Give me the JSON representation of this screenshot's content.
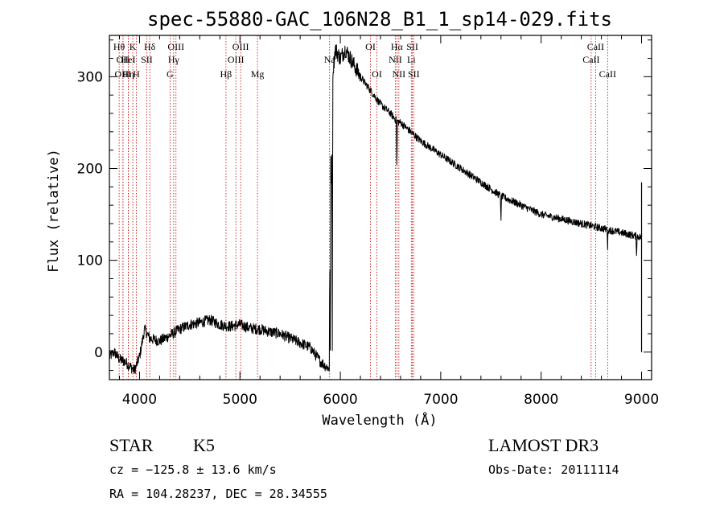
{
  "chart_data": {
    "type": "line",
    "title": "spec-55880-GAC_106N28_B1_1_sp14-029.fits",
    "xlabel": "Wavelength (Å)",
    "ylabel": "Flux (relative)",
    "xlim": [
      3700,
      9100
    ],
    "ylim": [
      -30,
      345
    ],
    "xticks": [
      4000,
      5000,
      6000,
      7000,
      8000,
      9000
    ],
    "yticks": [
      0,
      100,
      200,
      300
    ],
    "spectrum_anchors": {
      "name": "flux",
      "x": [
        3700,
        3750,
        3800,
        3850,
        3900,
        3950,
        4000,
        4050,
        4100,
        4200,
        4300,
        4400,
        4500,
        4600,
        4700,
        4800,
        4900,
        5000,
        5100,
        5200,
        5300,
        5400,
        5500,
        5600,
        5700,
        5800,
        5850,
        5890,
        5900,
        5910,
        5920,
        5950,
        6000,
        6050,
        6100,
        6200,
        6300,
        6400,
        6500,
        6560,
        6600,
        6700,
        6800,
        7000,
        7200,
        7400,
        7600,
        7800,
        8000,
        8200,
        8400,
        8600,
        8800,
        9000
      ],
      "y": [
        -5,
        0,
        -8,
        -10,
        -15,
        -20,
        -5,
        25,
        15,
        12,
        18,
        25,
        30,
        32,
        35,
        30,
        28,
        30,
        26,
        25,
        22,
        20,
        15,
        10,
        5,
        -10,
        -15,
        -18,
        240,
        170,
        300,
        330,
        320,
        330,
        320,
        300,
        285,
        270,
        260,
        252,
        250,
        240,
        230,
        215,
        200,
        185,
        170,
        160,
        150,
        145,
        140,
        135,
        130,
        125
      ]
    },
    "absorption_features": [
      {
        "x": 5900,
        "depth": 260
      },
      {
        "x": 5920,
        "depth": 290
      },
      {
        "x": 6563,
        "depth": 60
      },
      {
        "x": 7600,
        "depth": 30
      },
      {
        "x": 8662,
        "depth": 20
      },
      {
        "x": 8950,
        "depth": 20
      }
    ],
    "line_markers": [
      {
        "wavelength": 3797,
        "label": "Hθ",
        "row": 1
      },
      {
        "wavelength": 3835,
        "label": "OII",
        "row": 2
      },
      {
        "wavelength": 3835,
        "label": "OIII",
        "row": 3
      },
      {
        "wavelength": 3889,
        "label": "Hη",
        "row": 3
      },
      {
        "wavelength": 3933,
        "label": "K",
        "row": 1
      },
      {
        "wavelength": 3888,
        "label": "HeI",
        "row": 2
      },
      {
        "wavelength": 3968,
        "label": "H",
        "row": 3
      },
      {
        "wavelength": 4072,
        "label": "SII",
        "row": 2
      },
      {
        "wavelength": 4102,
        "label": "Hδ",
        "row": 1
      },
      {
        "wavelength": 4340,
        "label": "Hγ",
        "row": 2
      },
      {
        "wavelength": 4363,
        "label": "OIII",
        "row": 1
      },
      {
        "wavelength": 4304,
        "label": "G",
        "row": 3
      },
      {
        "wavelength": 4861,
        "label": "Hβ",
        "row": 3
      },
      {
        "wavelength": 4959,
        "label": "OIII",
        "row": 2
      },
      {
        "wavelength": 5007,
        "label": "OIII",
        "row": 1
      },
      {
        "wavelength": 5175,
        "label": "Mg",
        "row": 3
      },
      {
        "wavelength": 5893,
        "label": "Na",
        "row": 2
      },
      {
        "wavelength": 6300,
        "label": "OI",
        "row": 1
      },
      {
        "wavelength": 6364,
        "label": "OI",
        "row": 3
      },
      {
        "wavelength": 6548,
        "label": "NII",
        "row": 2
      },
      {
        "wavelength": 6563,
        "label": "Hα",
        "row": 1
      },
      {
        "wavelength": 6583,
        "label": "NII",
        "row": 3
      },
      {
        "wavelength": 6707,
        "label": "Li",
        "row": 2
      },
      {
        "wavelength": 6717,
        "label": "SII",
        "row": 1
      },
      {
        "wavelength": 6731,
        "label": "SII",
        "row": 3
      },
      {
        "wavelength": 8498,
        "label": "CaII",
        "row": 2
      },
      {
        "wavelength": 8542,
        "label": "CaII",
        "row": 1
      },
      {
        "wavelength": 8662,
        "label": "CaII",
        "row": 3
      }
    ]
  },
  "footer": {
    "class_label": "STAR",
    "subclass": "K5",
    "survey": "LAMOST DR3",
    "cz": "cz = −125.8 ± 13.6 km/s",
    "obs_date": "Obs-Date: 20111114",
    "coords": "RA = 104.28237, DEC =  28.34555"
  },
  "colors": {
    "axis": "#000000",
    "spectrum": "#000000",
    "line_marker": "#c00000"
  }
}
